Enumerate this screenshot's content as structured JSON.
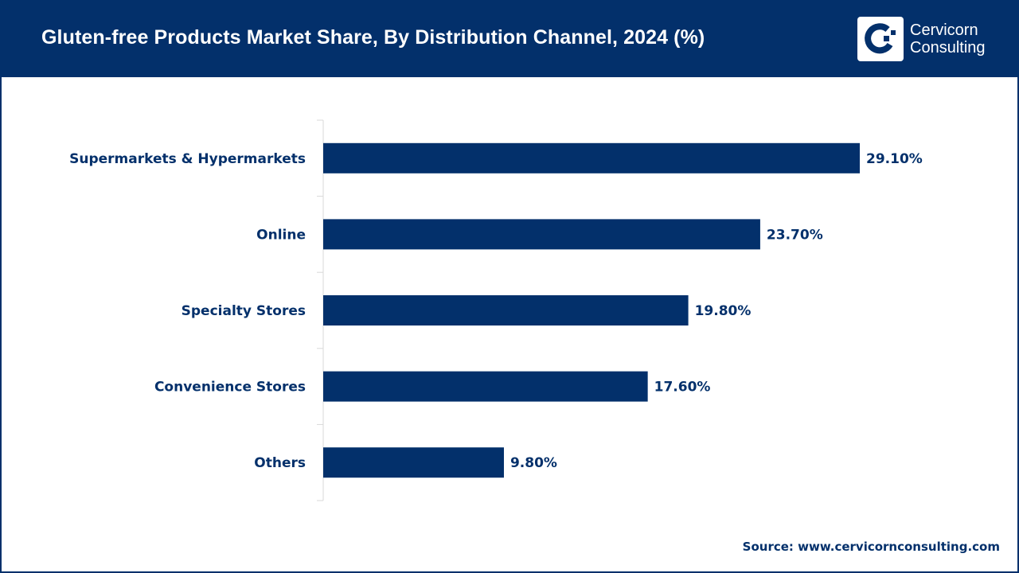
{
  "header": {
    "title": "Gluten-free Products Market Share, By Distribution Channel, 2024 (%)",
    "logo_line1": "Cervicorn",
    "logo_line2": "Consulting"
  },
  "source": "Source: www.cervicornconsulting.com",
  "colors": {
    "bar": "#03306b",
    "header": "#03306b",
    "axis": "#d9d9d9"
  },
  "chart_data": {
    "type": "bar",
    "orientation": "horizontal",
    "title": "Gluten-free Products Market Share, By Distribution Channel, 2024 (%)",
    "xlabel": "",
    "ylabel": "",
    "categories": [
      "Supermarkets & Hypermarkets",
      "Online",
      "Specialty Stores",
      "Convenience Stores",
      "Others"
    ],
    "values": [
      29.1,
      23.7,
      19.8,
      17.6,
      9.8
    ],
    "data_labels": [
      "29.10%",
      "23.70%",
      "19.80%",
      "17.60%",
      "9.80%"
    ],
    "xlim": [
      0,
      29.1
    ],
    "grid": false,
    "legend": "none"
  }
}
